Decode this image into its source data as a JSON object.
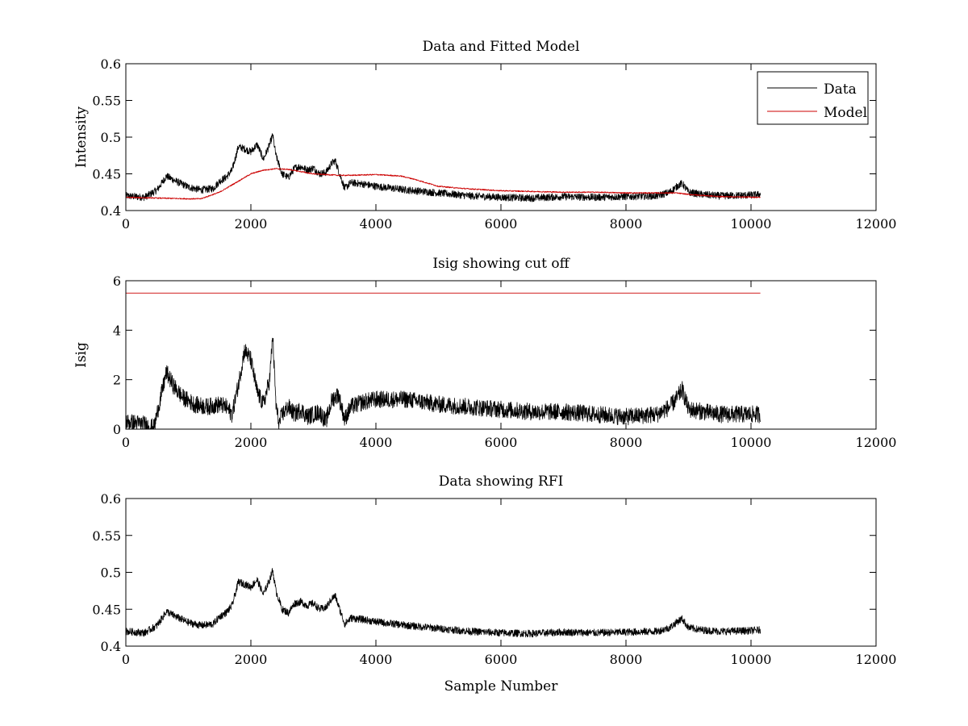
{
  "chart_data": [
    {
      "type": "line",
      "title": "Data and Fitted Model",
      "xlabel": "",
      "ylabel": "Intensity",
      "xlim": [
        0,
        12000
      ],
      "ylim": [
        0.4,
        0.6
      ],
      "xticks": [
        0,
        2000,
        4000,
        6000,
        8000,
        10000,
        12000
      ],
      "xtick_labels": [
        "0",
        "2000",
        "4000",
        "6000",
        "8000",
        "10000",
        "12000"
      ],
      "yticks": [
        0.4,
        0.45,
        0.5,
        0.55,
        0.6
      ],
      "ytick_labels": [
        "0.4",
        "0.45",
        "0.5",
        "0.55",
        "0.6"
      ],
      "grid": false,
      "legend": "top-right",
      "series": [
        {
          "name": "Data",
          "color": "#000000",
          "noise": 0.005,
          "x": [
            0,
            300,
            500,
            650,
            800,
            1000,
            1200,
            1400,
            1500,
            1600,
            1700,
            1800,
            1900,
            2000,
            2100,
            2200,
            2300,
            2350,
            2400,
            2500,
            2600,
            2700,
            2800,
            2900,
            3000,
            3100,
            3200,
            3300,
            3350,
            3400,
            3500,
            3600,
            3700,
            3800,
            4000,
            4500,
            5000,
            5500,
            6000,
            6500,
            7000,
            7500,
            8000,
            8500,
            8700,
            8850,
            8900,
            9000,
            9200,
            9500,
            10000,
            10150
          ],
          "y": [
            0.42,
            0.418,
            0.428,
            0.447,
            0.44,
            0.432,
            0.428,
            0.43,
            0.44,
            0.445,
            0.455,
            0.487,
            0.484,
            0.48,
            0.49,
            0.47,
            0.49,
            0.503,
            0.475,
            0.45,
            0.445,
            0.458,
            0.46,
            0.455,
            0.458,
            0.45,
            0.452,
            0.465,
            0.468,
            0.455,
            0.43,
            0.438,
            0.437,
            0.436,
            0.433,
            0.428,
            0.424,
            0.42,
            0.418,
            0.417,
            0.419,
            0.418,
            0.419,
            0.42,
            0.425,
            0.435,
            0.437,
            0.425,
            0.422,
            0.42,
            0.421,
            0.422
          ]
        },
        {
          "name": "Model",
          "color": "#cc0000",
          "noise": 0.0008,
          "x": [
            0,
            500,
            1000,
            1200,
            1500,
            1800,
            2000,
            2200,
            2400,
            2600,
            2800,
            3000,
            3200,
            3400,
            3600,
            4000,
            4400,
            4600,
            4800,
            5000,
            5400,
            6000,
            6500,
            7000,
            7500,
            8000,
            8500,
            8800,
            9000,
            9500,
            10150
          ],
          "y": [
            0.418,
            0.417,
            0.416,
            0.416,
            0.425,
            0.44,
            0.45,
            0.455,
            0.457,
            0.456,
            0.453,
            0.45,
            0.449,
            0.448,
            0.448,
            0.449,
            0.447,
            0.443,
            0.438,
            0.433,
            0.43,
            0.427,
            0.426,
            0.425,
            0.425,
            0.424,
            0.424,
            0.424,
            0.422,
            0.419,
            0.418
          ]
        }
      ]
    },
    {
      "type": "line",
      "title": "Isig showing cut off",
      "xlabel": "",
      "ylabel": "Isig",
      "xlim": [
        0,
        12000
      ],
      "ylim": [
        0,
        6
      ],
      "xticks": [
        0,
        2000,
        4000,
        6000,
        8000,
        10000,
        12000
      ],
      "xtick_labels": [
        "0",
        "2000",
        "4000",
        "6000",
        "8000",
        "10000",
        "12000"
      ],
      "yticks": [
        0,
        2,
        4,
        6
      ],
      "ytick_labels": [
        "0",
        "2",
        "4",
        "6"
      ],
      "grid": false,
      "series": [
        {
          "color": "#000000",
          "noise": 0.35,
          "clip_min": 0,
          "x": [
            0,
            300,
            450,
            550,
            650,
            750,
            900,
            1100,
            1300,
            1500,
            1600,
            1700,
            1800,
            1900,
            2000,
            2100,
            2200,
            2300,
            2350,
            2400,
            2450,
            2500,
            2600,
            2700,
            2800,
            2900,
            3000,
            3100,
            3200,
            3300,
            3400,
            3500,
            3600,
            3700,
            3800,
            4000,
            4500,
            5000,
            5500,
            6000,
            6500,
            7000,
            7500,
            8000,
            8500,
            8700,
            8800,
            8900,
            9000,
            9500,
            10000,
            10150
          ],
          "y": [
            0.3,
            0.2,
            0.05,
            1.2,
            2.3,
            1.8,
            1.3,
            1.0,
            0.9,
            1.0,
            0.9,
            0.6,
            1.8,
            3.2,
            2.8,
            1.5,
            1.0,
            2.0,
            3.8,
            1.0,
            0.2,
            0.6,
            0.9,
            0.6,
            0.8,
            0.5,
            0.6,
            0.7,
            0.3,
            1.2,
            1.4,
            0.4,
            0.9,
            1.0,
            1.1,
            1.2,
            1.2,
            1.0,
            0.9,
            0.8,
            0.7,
            0.7,
            0.6,
            0.5,
            0.6,
            0.9,
            1.2,
            1.6,
            0.8,
            0.6,
            0.6,
            0.6
          ]
        },
        {
          "color": "#cc0000",
          "noise": 0,
          "x": [
            0,
            10150
          ],
          "y": [
            5.5,
            5.5
          ]
        }
      ]
    },
    {
      "type": "line",
      "title": "Data showing RFI",
      "xlabel": "Sample Number",
      "ylabel": "",
      "xlim": [
        0,
        12000
      ],
      "ylim": [
        0.4,
        0.6
      ],
      "xticks": [
        0,
        2000,
        4000,
        6000,
        8000,
        10000,
        12000
      ],
      "xtick_labels": [
        "0",
        "2000",
        "4000",
        "6000",
        "8000",
        "10000",
        "12000"
      ],
      "yticks": [
        0.4,
        0.45,
        0.5,
        0.55,
        0.6
      ],
      "ytick_labels": [
        "0.4",
        "0.45",
        "0.5",
        "0.55",
        "0.6"
      ],
      "grid": false,
      "series": [
        {
          "color": "#000000",
          "noise": 0.005,
          "x": [
            0,
            300,
            500,
            650,
            800,
            1000,
            1200,
            1400,
            1500,
            1600,
            1700,
            1800,
            1900,
            2000,
            2100,
            2200,
            2300,
            2350,
            2400,
            2500,
            2600,
            2700,
            2800,
            2900,
            3000,
            3100,
            3200,
            3300,
            3350,
            3400,
            3500,
            3600,
            3700,
            3800,
            4000,
            4500,
            5000,
            5500,
            6000,
            6500,
            7000,
            7500,
            8000,
            8500,
            8700,
            8850,
            8900,
            9000,
            9200,
            9500,
            10000,
            10150
          ],
          "y": [
            0.42,
            0.418,
            0.428,
            0.447,
            0.44,
            0.432,
            0.428,
            0.43,
            0.44,
            0.445,
            0.455,
            0.487,
            0.484,
            0.48,
            0.49,
            0.47,
            0.49,
            0.503,
            0.475,
            0.45,
            0.445,
            0.458,
            0.46,
            0.455,
            0.458,
            0.45,
            0.452,
            0.465,
            0.468,
            0.455,
            0.43,
            0.438,
            0.437,
            0.436,
            0.433,
            0.428,
            0.424,
            0.42,
            0.418,
            0.417,
            0.419,
            0.418,
            0.419,
            0.42,
            0.425,
            0.435,
            0.437,
            0.425,
            0.422,
            0.42,
            0.421,
            0.422
          ]
        }
      ]
    }
  ]
}
